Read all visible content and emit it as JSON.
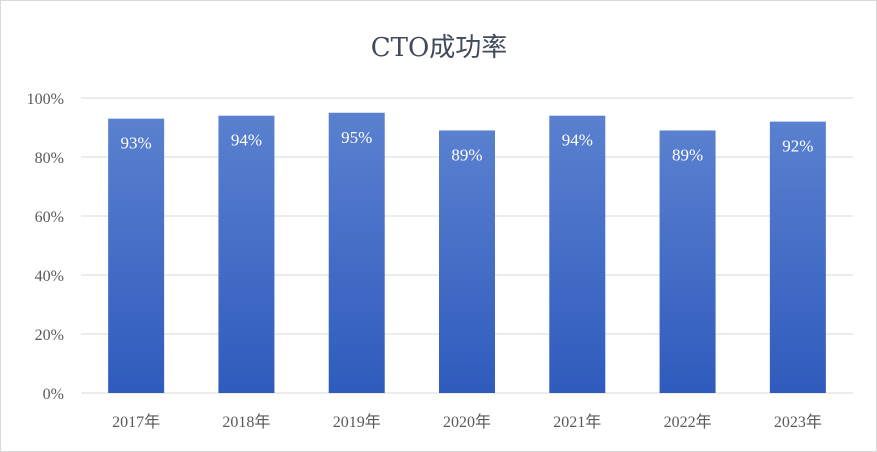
{
  "chart_data": {
    "type": "bar",
    "title": "CTO成功率",
    "categories": [
      "2017年",
      "2018年",
      "2019年",
      "2020年",
      "2021年",
      "2022年",
      "2023年"
    ],
    "series": [
      {
        "values": [
          93,
          94,
          95,
          89,
          94,
          89,
          92
        ]
      }
    ],
    "data_labels": [
      "93%",
      "94%",
      "95%",
      "89%",
      "94%",
      "89%",
      "92%"
    ],
    "ylim": [
      0,
      100
    ],
    "yticks": [
      0,
      20,
      40,
      60,
      80,
      100
    ],
    "ytick_labels": [
      "0%",
      "20%",
      "40%",
      "60%",
      "80%",
      "100%"
    ],
    "grid": true,
    "legend": "none",
    "colors": {
      "bar_top": "#5a80cf",
      "bar_bottom": "#2f5bbd",
      "grid": "#d9d9d9"
    }
  }
}
